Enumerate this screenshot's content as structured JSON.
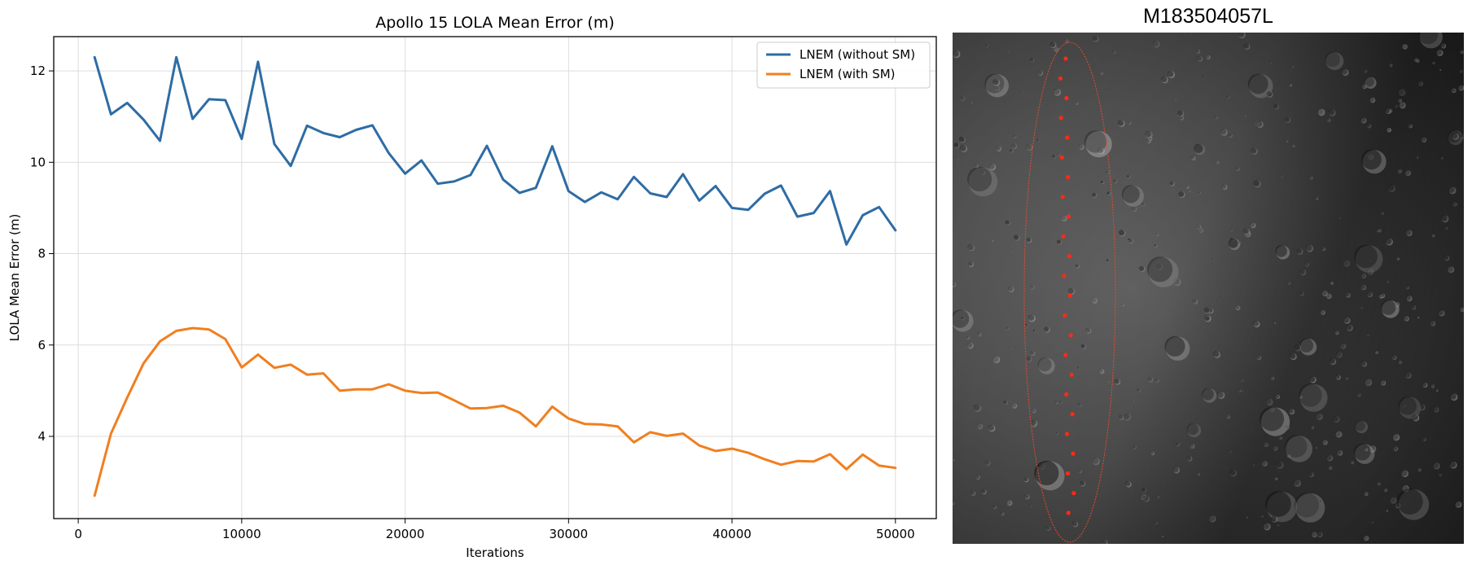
{
  "chart_data": {
    "type": "line",
    "title": "Apollo 15 LOLA Mean Error (m)",
    "xlabel": "Iterations",
    "ylabel": "LOLA Mean Error (m)",
    "xlim": [
      -1500,
      52500
    ],
    "ylim": [
      2.2,
      12.75
    ],
    "xticks": [
      0,
      10000,
      20000,
      30000,
      40000,
      50000
    ],
    "xtick_labels": [
      "0",
      "10000",
      "20000",
      "30000",
      "40000",
      "50000"
    ],
    "yticks": [
      4,
      6,
      8,
      10,
      12
    ],
    "ytick_labels": [
      "4",
      "6",
      "8",
      "10",
      "12"
    ],
    "grid": true,
    "legend_position": "upper right",
    "x": [
      1000,
      2000,
      3000,
      4000,
      5000,
      6000,
      7000,
      8000,
      9000,
      10000,
      11000,
      12000,
      13000,
      14000,
      15000,
      16000,
      17000,
      18000,
      19000,
      20000,
      21000,
      22000,
      23000,
      24000,
      25000,
      26000,
      27000,
      28000,
      29000,
      30000,
      31000,
      32000,
      33000,
      34000,
      35000,
      36000,
      37000,
      38000,
      39000,
      40000,
      41000,
      42000,
      43000,
      44000,
      45000,
      46000,
      47000,
      48000,
      49000,
      50000
    ],
    "series": [
      {
        "name": "LNEM (without SM)",
        "color": "#2e6ca4",
        "values": [
          12.3,
          11.05,
          11.3,
          10.93,
          10.47,
          12.3,
          10.95,
          11.38,
          11.36,
          10.51,
          12.2,
          10.4,
          9.92,
          10.8,
          10.64,
          10.55,
          10.71,
          10.81,
          10.2,
          9.75,
          10.04,
          9.53,
          9.58,
          9.72,
          10.36,
          9.62,
          9.33,
          9.44,
          10.35,
          9.37,
          9.13,
          9.34,
          9.19,
          9.68,
          9.32,
          9.24,
          9.74,
          9.16,
          9.48,
          9.0,
          8.96,
          9.31,
          9.49,
          8.81,
          8.89,
          9.37,
          8.2,
          8.84,
          9.02,
          8.51
        ]
      },
      {
        "name": "LNEM (with SM)",
        "color": "#f07f1f",
        "values": [
          2.7,
          4.06,
          4.85,
          5.6,
          6.08,
          6.31,
          6.37,
          6.34,
          6.13,
          5.51,
          5.79,
          5.5,
          5.57,
          5.35,
          5.38,
          5.0,
          5.03,
          5.03,
          5.14,
          5.0,
          4.95,
          4.96,
          4.79,
          4.61,
          4.62,
          4.67,
          4.52,
          4.22,
          4.65,
          4.39,
          4.27,
          4.26,
          4.22,
          3.87,
          4.09,
          4.01,
          4.06,
          3.8,
          3.68,
          3.73,
          3.64,
          3.5,
          3.38,
          3.46,
          3.45,
          3.61,
          3.28,
          3.6,
          3.36,
          3.31
        ]
      }
    ]
  },
  "image_panel": {
    "title": "M183504057L",
    "marker_color": "#ff2a14",
    "ellipse_color": "#e84a2c",
    "marker_count": 24
  }
}
